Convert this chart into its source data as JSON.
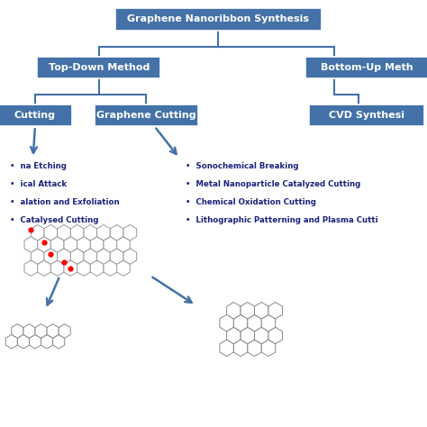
{
  "box_color": "#4472a8",
  "line_color": "#4472a8",
  "text_color": "#1a237e",
  "arrow_color": "#4472a8",
  "title": "Graphene Nanoribbon Synthesis",
  "top_down": "Top-Down Method",
  "bottom_up": "Bottom-Up Meth",
  "left_cut": "Cutting",
  "graphene_cut": "Graphene Cutting",
  "cvd": "CVD Synthesi",
  "left_bullets": [
    "na Etching",
    "ical Attack",
    "alation and Exfoliation",
    "Catalysed Cutting"
  ],
  "right_bullets": [
    "Sonochemical Breaking",
    "Metal Nanoparticle Catalyzed Cutting",
    "Chemical Oxidation Cutting",
    "Lithographic Patterning and Plasma Cutti"
  ]
}
